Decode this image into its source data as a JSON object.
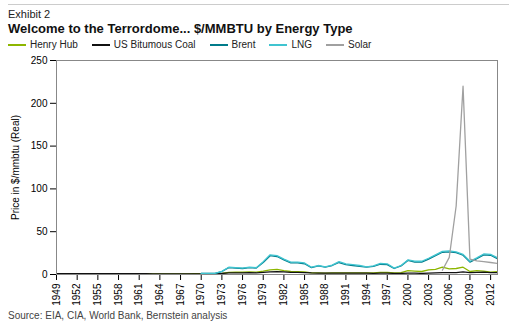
{
  "chart_data": {
    "type": "line",
    "subtitle": "Exhibit 2",
    "title": "Welcome to the Terrordome... $/MMBTU by Energy Type",
    "source": "Source: EIA, CIA, World Bank, Bernstein analysis",
    "ylabel": "Price in $/mmbtu (Real)",
    "x": [
      1949,
      1950,
      1951,
      1952,
      1953,
      1954,
      1955,
      1956,
      1957,
      1958,
      1959,
      1960,
      1961,
      1962,
      1963,
      1964,
      1965,
      1966,
      1967,
      1968,
      1969,
      1970,
      1971,
      1972,
      1973,
      1974,
      1975,
      1976,
      1977,
      1978,
      1979,
      1980,
      1981,
      1982,
      1983,
      1984,
      1985,
      1986,
      1987,
      1988,
      1989,
      1990,
      1991,
      1992,
      1993,
      1994,
      1995,
      1996,
      1997,
      1998,
      1999,
      2000,
      2001,
      2002,
      2003,
      2004,
      2005,
      2006,
      2007,
      2008,
      2009,
      2010,
      2011,
      2012,
      2013
    ],
    "series": [
      {
        "name": "Henry Hub",
        "color": "#8db600",
        "values": [
          1.0,
          1.0,
          1.0,
          1.0,
          1.0,
          1.0,
          0.9,
          0.9,
          0.9,
          0.9,
          0.9,
          0.9,
          0.9,
          0.9,
          0.8,
          0.8,
          0.8,
          0.8,
          0.8,
          0.8,
          0.9,
          0.9,
          1.0,
          1.0,
          1.2,
          2.5,
          2.8,
          2.6,
          3.0,
          2.8,
          4.0,
          5.5,
          6.0,
          4.5,
          3.5,
          3.2,
          3.0,
          2.0,
          1.8,
          1.6,
          1.8,
          2.0,
          1.9,
          2.0,
          2.0,
          1.8,
          1.8,
          2.5,
          2.5,
          1.8,
          2.2,
          4.5,
          4.0,
          3.5,
          5.5,
          6.0,
          8.5,
          6.5,
          7.0,
          8.5,
          3.5,
          4.5,
          4.0,
          2.8,
          3.5
        ]
      },
      {
        "name": "US Bitumous Coal",
        "color": "#111111",
        "values": [
          1.0,
          1.0,
          1.0,
          1.0,
          1.0,
          1.0,
          1.0,
          1.0,
          1.0,
          0.9,
          0.9,
          0.9,
          0.9,
          0.9,
          0.8,
          0.8,
          0.8,
          0.8,
          0.8,
          0.8,
          0.8,
          0.8,
          0.9,
          0.9,
          1.2,
          1.8,
          2.0,
          2.0,
          2.2,
          2.0,
          2.5,
          3.0,
          3.2,
          3.0,
          2.5,
          2.4,
          2.3,
          1.8,
          1.6,
          1.5,
          1.5,
          1.6,
          1.6,
          1.6,
          1.5,
          1.5,
          1.4,
          1.5,
          1.5,
          1.3,
          1.3,
          1.5,
          1.5,
          1.3,
          1.5,
          1.8,
          2.2,
          2.2,
          2.2,
          3.0,
          2.2,
          2.5,
          2.8,
          2.2,
          2.2
        ]
      },
      {
        "name": "Brent",
        "color": "#007b8a",
        "values": [
          null,
          null,
          null,
          null,
          null,
          null,
          null,
          null,
          null,
          null,
          null,
          null,
          null,
          null,
          null,
          null,
          null,
          null,
          null,
          null,
          null,
          1.2,
          1.2,
          1.3,
          3.5,
          8.0,
          7.5,
          7.0,
          8.0,
          7.5,
          14.0,
          22.0,
          21.0,
          17.0,
          13.5,
          13.5,
          12.5,
          8.0,
          10.0,
          8.5,
          10.5,
          14.0,
          11.5,
          10.5,
          9.5,
          8.5,
          9.5,
          12.0,
          11.5,
          7.0,
          10.0,
          16.5,
          14.5,
          14.5,
          18.0,
          22.0,
          26.0,
          26.5,
          25.5,
          22.5,
          14.5,
          18.5,
          23.0,
          22.5,
          18.5
        ]
      },
      {
        "name": "LNG",
        "color": "#40c4d0",
        "values": [
          null,
          null,
          null,
          null,
          null,
          null,
          null,
          null,
          null,
          null,
          null,
          null,
          null,
          null,
          null,
          null,
          null,
          null,
          null,
          null,
          null,
          1.3,
          1.3,
          1.4,
          3.7,
          8.5,
          8.0,
          7.5,
          8.5,
          8.0,
          15.0,
          23.0,
          22.0,
          18.0,
          14.5,
          14.5,
          13.5,
          8.5,
          10.5,
          9.0,
          11.0,
          15.0,
          12.5,
          11.5,
          10.5,
          9.0,
          10.0,
          13.0,
          12.5,
          7.5,
          10.5,
          17.0,
          15.5,
          15.5,
          19.0,
          23.0,
          27.0,
          27.5,
          26.5,
          23.5,
          15.5,
          19.5,
          24.0,
          23.5,
          19.5
        ]
      },
      {
        "name": "Solar",
        "color": "#a0a0a0",
        "values": [
          null,
          null,
          null,
          null,
          null,
          null,
          null,
          null,
          null,
          null,
          null,
          null,
          null,
          null,
          null,
          null,
          null,
          null,
          null,
          null,
          null,
          null,
          null,
          null,
          null,
          null,
          null,
          null,
          null,
          null,
          null,
          null,
          null,
          null,
          null,
          null,
          null,
          null,
          null,
          null,
          null,
          null,
          null,
          null,
          null,
          null,
          null,
          null,
          null,
          null,
          null,
          null,
          null,
          null,
          null,
          null,
          5,
          20,
          80,
          220,
          18,
          16,
          15,
          14,
          13
        ]
      }
    ],
    "xlim": [
      1949,
      2013
    ],
    "xticks": [
      1949,
      1952,
      1955,
      1958,
      1961,
      1964,
      1967,
      1970,
      1973,
      1976,
      1979,
      1982,
      1985,
      1988,
      1991,
      1994,
      1997,
      2000,
      2003,
      2006,
      2009,
      2012
    ],
    "ylim": [
      0,
      250
    ],
    "yticks": [
      0,
      50,
      100,
      150,
      200,
      250
    ],
    "grid": false,
    "legend": "top"
  }
}
